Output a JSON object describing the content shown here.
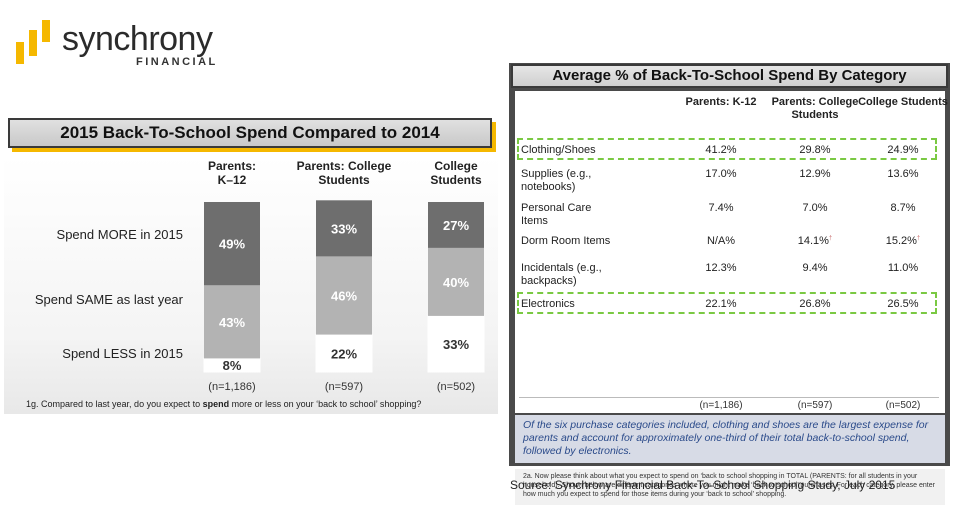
{
  "logo": {
    "name": "synchrony",
    "sub": "FINANCIAL",
    "colors": [
      "#f5b800",
      "#f5b800",
      "#f5b800"
    ]
  },
  "left": {
    "title": "2015 Back-To-School Spend Compared to 2014",
    "footnote": "1g.  Compared to last year, do you expect to spend more or less on your ‘back to school’ shopping?"
  },
  "chart_data": {
    "type": "bar",
    "stacked": true,
    "title": "2015 Back-To-School Spend Compared to 2014",
    "categories": [
      "Parents:\nK–12",
      "Parents: College\nStudents",
      "College\nStudents"
    ],
    "sample_sizes": [
      "(n=1,186)",
      "(n=597)",
      "(n=502)"
    ],
    "series": [
      {
        "name": "Spend LESS in 2015",
        "values": [
          8,
          22,
          33
        ],
        "labels": [
          "8%",
          "22%",
          "33%"
        ],
        "color": "#ffffff"
      },
      {
        "name": "Spend SAME as last year",
        "values": [
          43,
          46,
          40
        ],
        "labels": [
          "43%",
          "46%",
          "40%"
        ],
        "color": "#b3b3b3"
      },
      {
        "name": "Spend MORE in 2015",
        "values": [
          49,
          33,
          27
        ],
        "labels": [
          "49%",
          "33%",
          "27%"
        ],
        "color": "#6e6e6e"
      }
    ],
    "ylim": [
      0,
      100
    ]
  },
  "right": {
    "title": "Average %  of Back-To-School Spend By Category",
    "columns": [
      "Parents: K-12",
      "Parents: College Students",
      "College Students"
    ],
    "rows": [
      {
        "label": "Clothing/Shoes",
        "values": [
          "41.2%",
          "29.8%",
          "24.9%"
        ],
        "highlight": true
      },
      {
        "label": "Supplies (e.g., notebooks)",
        "values": [
          "17.0%",
          "12.9%",
          "13.6%"
        ],
        "highlight": false
      },
      {
        "label": "Personal Care Items",
        "values": [
          "7.4%",
          "7.0%",
          "8.7%"
        ],
        "highlight": false
      },
      {
        "label": "Dorm Room Items",
        "values": [
          "N/A%",
          "14.1%",
          "15.2%"
        ],
        "highlight": false
      },
      {
        "label": "Incidentals  (e.g., backpacks)",
        "values": [
          "12.3%",
          "9.4%",
          "11.0%"
        ],
        "highlight": false
      },
      {
        "label": "Electronics",
        "values": [
          "22.1%",
          "26.8%",
          "26.5%"
        ],
        "highlight": true
      }
    ],
    "n": [
      "(n=1,186)",
      "(n=597)",
      "(n=502)"
    ],
    "summary": "Of the six purchase categories included, clothing and shoes are the largest expense for parents and account for approximately one-third of their total back-to-school spend, followed by electronics.",
    "question": "2a.  Now please think about what you expect to spend on ‘back to school shopping in TOTAL (PARENTS:  for all students in your household).  Shown below are different categories where you might make ‘back to school’ purchases.  For each category, please enter how much you expect to spend for those items during your ‘back to school’ shopping."
  },
  "source": "Source: Synchrony Financial Back-To-School  Shopping Study, July 2015"
}
